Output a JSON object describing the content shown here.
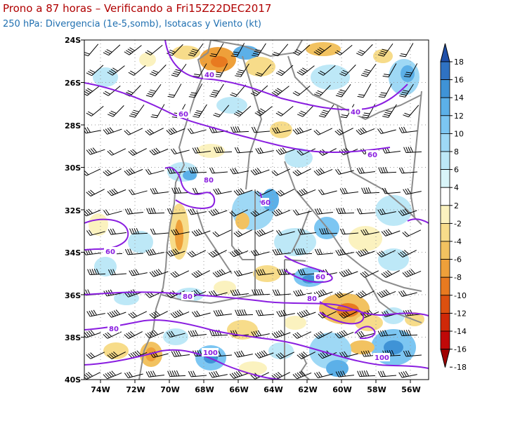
{
  "header": {
    "title": "Prono a 87 horas – Verificando a Fri15Z22DEC2017",
    "subtitle": "250 hPa: Divergencia (1e-5,somb), Isotacas y Viento (kt)"
  },
  "map": {
    "lat_labels": [
      "24S",
      "26S",
      "28S",
      "30S",
      "32S",
      "34S",
      "36S",
      "38S",
      "40S"
    ],
    "lon_labels": [
      "74W",
      "72W",
      "70W",
      "68W",
      "66W",
      "64W",
      "62W",
      "60W",
      "58W",
      "56W"
    ],
    "isotach_labels": [
      "40",
      "40",
      "60",
      "60",
      "80",
      "80",
      "60",
      "60",
      "60",
      "80",
      "80",
      "100",
      "100"
    ]
  },
  "colorbar": {
    "levels": [
      "18",
      "16",
      "14",
      "12",
      "10",
      "8",
      "6",
      "4",
      "2",
      "-2",
      "-4",
      "-6",
      "-8",
      "-10",
      "-12",
      "-14",
      "-16",
      "-18"
    ],
    "colors": [
      "#1f4fa8",
      "#2f72c2",
      "#3f93d6",
      "#5cb0e8",
      "#7cc6f2",
      "#9ed8f5",
      "#bde8f7",
      "#d9f5f9",
      "#ffffff",
      "#fbf2bf",
      "#f7dc8a",
      "#f2c260",
      "#eea03a",
      "#e87a20",
      "#dc5010",
      "#cf2808",
      "#c00808",
      "#a00000"
    ]
  },
  "colors": {
    "isotach": "#8a1ee0",
    "barb": "#000000",
    "border": "#8c8c8c"
  }
}
